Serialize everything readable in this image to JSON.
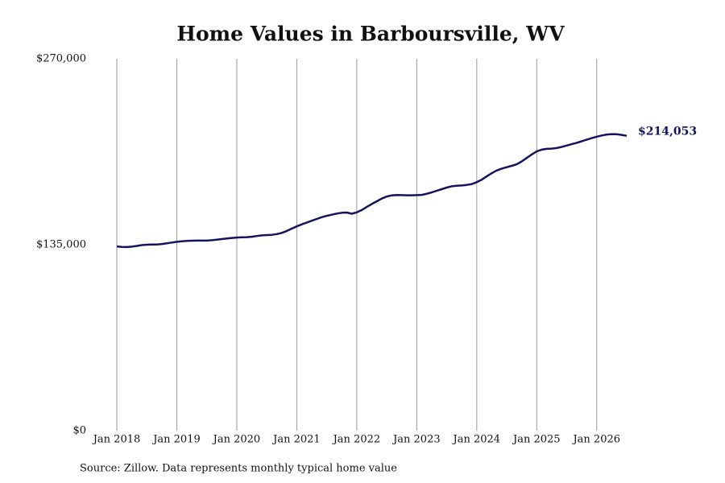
{
  "chart_data": {
    "type": "line",
    "title": "Home Values in Barboursville, WV",
    "source": "Source: Zillow. Data represents monthly typical home value",
    "categories": [
      "Jan 2018",
      null,
      null,
      null,
      null,
      null,
      null,
      null,
      null,
      null,
      null,
      null,
      "Jan 2019",
      null,
      null,
      null,
      null,
      null,
      null,
      null,
      null,
      null,
      null,
      null,
      "Jan 2020",
      null,
      null,
      null,
      null,
      null,
      null,
      null,
      null,
      null,
      null,
      null,
      "Jan 2021",
      null,
      null,
      null,
      null,
      null,
      null,
      null,
      null,
      null,
      null,
      null,
      "Jan 2022",
      null,
      null,
      null,
      null,
      null,
      null,
      null,
      null,
      null,
      null,
      null,
      "Jan 2023",
      null,
      null,
      null,
      null,
      null,
      null,
      null,
      null,
      null,
      null,
      null,
      "Jan 2024",
      null,
      null,
      null,
      null,
      null,
      null,
      null,
      null,
      null,
      null,
      null,
      "Jan 2025",
      null,
      null,
      null,
      null,
      null,
      null,
      null,
      null,
      null,
      null,
      null,
      "Jan 2026",
      null,
      null,
      null,
      null,
      null,
      null
    ],
    "values": [
      133800,
      133400,
      133300,
      133600,
      134100,
      134700,
      135000,
      135100,
      135200,
      135500,
      136000,
      136600,
      137100,
      137500,
      137800,
      137900,
      138000,
      138000,
      138000,
      138300,
      138700,
      139100,
      139500,
      139900,
      140200,
      140400,
      140500,
      140800,
      141300,
      141800,
      142000,
      142200,
      142700,
      143600,
      145000,
      146700,
      148300,
      149800,
      151100,
      152400,
      153700,
      155000,
      156000,
      156800,
      157600,
      158200,
      158400,
      157500,
      158500,
      160200,
      162400,
      164600,
      166500,
      168500,
      170000,
      170800,
      171100,
      171000,
      170900,
      170900,
      171000,
      171200,
      172000,
      173000,
      174200,
      175300,
      176500,
      177400,
      177800,
      178000,
      178400,
      179000,
      180400,
      182200,
      184600,
      186900,
      188900,
      190300,
      191300,
      192300,
      193400,
      195500,
      198000,
      200500,
      202800,
      204000,
      204600,
      204800,
      205200,
      206000,
      207000,
      208000,
      209000,
      210100,
      211300,
      212400,
      213400,
      214300,
      215000,
      215300,
      215200,
      214700,
      214053
    ],
    "value_labels": [
      null,
      null,
      null,
      null,
      null,
      null,
      null,
      null,
      null,
      null,
      null,
      null,
      null,
      null,
      null,
      null,
      null,
      null,
      null,
      null,
      null,
      null,
      null,
      null,
      null,
      null,
      null,
      null,
      null,
      null,
      null,
      null,
      null,
      null,
      null,
      null,
      null,
      null,
      null,
      null,
      null,
      null,
      null,
      null,
      null,
      null,
      null,
      null,
      null,
      null,
      null,
      null,
      null,
      null,
      null,
      null,
      null,
      null,
      null,
      null,
      null,
      null,
      null,
      null,
      null,
      null,
      null,
      null,
      null,
      null,
      null,
      null,
      null,
      null,
      null,
      null,
      null,
      null,
      null,
      null,
      null,
      null,
      null,
      null,
      null,
      null,
      null,
      null,
      null,
      null,
      null,
      null,
      null,
      null,
      null,
      null,
      null,
      null,
      null,
      null,
      null,
      null,
      "$214,053"
    ],
    "color": "#14145e",
    "ylim": [
      0,
      270000
    ],
    "yticks": [
      {
        "value": 0,
        "label": "$0"
      },
      {
        "value": 135000,
        "label": "$135,000"
      },
      {
        "value": 270000,
        "label": "$270,000"
      }
    ],
    "grid": true
  }
}
